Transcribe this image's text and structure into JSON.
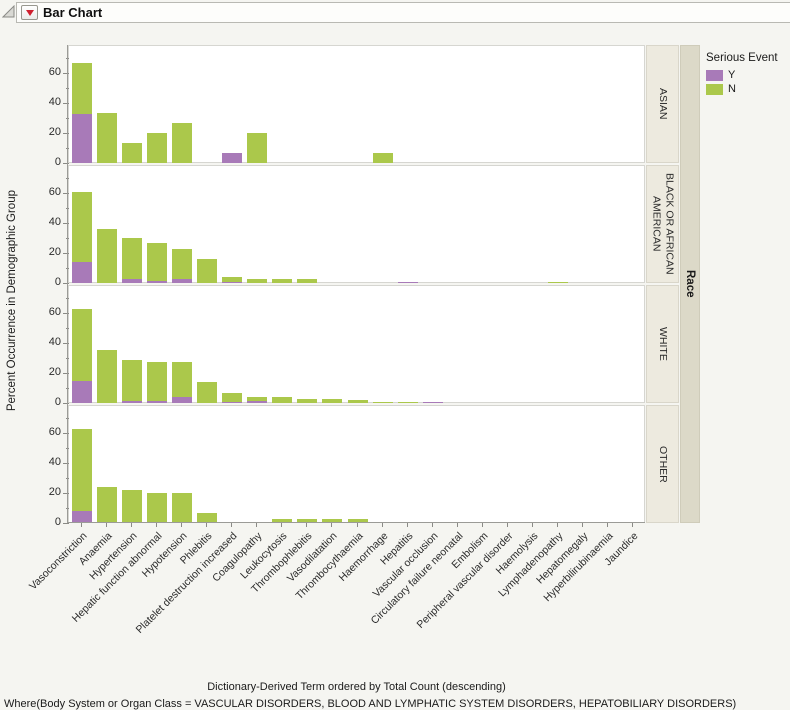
{
  "window": {
    "title": "Bar Chart"
  },
  "legend": {
    "title": "Serious Event",
    "items": [
      {
        "label": "Y",
        "color": "#a87ab8"
      },
      {
        "label": "N",
        "color": "#abc84b"
      }
    ]
  },
  "colors": {
    "serious_yes": "#a87ab8",
    "serious_no": "#abc84b",
    "axis": "#9b9b97",
    "strip_bg": "#edeadf",
    "race_strip_bg": "#dcd9c8",
    "page_bg": "#f5f5f1"
  },
  "chart_data": {
    "type": "bar",
    "stacked": true,
    "title": "Bar Chart",
    "xlabel": "Dictionary-Derived Term ordered by Total Count (descending)",
    "ylabel": "Percent Occurrence in Demographic Group",
    "panel_axis": "Race",
    "legend_position": "right",
    "yticks": [
      0,
      20,
      40,
      60
    ],
    "ylim": [
      0,
      78
    ],
    "grid": false,
    "categories": [
      "Vasoconstriction",
      "Anaemia",
      "Hypertension",
      "Hepatic function abnormal",
      "Hypotension",
      "Phlebitis",
      "Platelet destruction increased",
      "Coagulopathy",
      "Leukocytosis",
      "Thrombophlebitis",
      "Vasodilatation",
      "Thrombocythaemia",
      "Haemorrhage",
      "Hepatitis",
      "Vascular occlusion",
      "Circulatory failure neonatal",
      "Embolism",
      "Peripheral vascular disorder",
      "Haemolysis",
      "Lymphadenopathy",
      "Hepatomegaly",
      "Hyperbilirubinaemia",
      "Jaundice"
    ],
    "panels": [
      {
        "label": "ASIAN",
        "series": [
          {
            "name": "Y",
            "values": [
              33,
              0,
              0,
              0,
              0,
              0,
              7,
              0,
              0,
              0,
              0,
              0,
              0,
              0,
              0,
              0,
              0,
              0,
              0,
              0,
              0,
              0,
              0
            ]
          },
          {
            "name": "N",
            "values": [
              34,
              33.5,
              13.5,
              20,
              27,
              0,
              0,
              20,
              0,
              0,
              0,
              0,
              7,
              0,
              0,
              0,
              0,
              0,
              0,
              0,
              0,
              0,
              0
            ]
          }
        ]
      },
      {
        "label": "BLACK OR AFRICAN AMERICAN",
        "series": [
          {
            "name": "Y",
            "values": [
              14,
              0,
              2.5,
              1.2,
              3,
              0,
              0.7,
              0,
              0,
              0,
              0,
              0,
              0,
              1,
              0,
              0,
              0,
              0,
              0,
              0,
              0,
              0,
              0
            ]
          },
          {
            "name": "N",
            "values": [
              47,
              36,
              27.5,
              25.8,
              19.5,
              16,
              3.3,
              2.5,
              2.5,
              2.5,
              0,
              0,
              0,
              0,
              0,
              0,
              0,
              0,
              0,
              1,
              0,
              0,
              0
            ]
          }
        ]
      },
      {
        "label": "WHITE",
        "series": [
          {
            "name": "Y",
            "values": [
              15,
              0,
              1.5,
              1.5,
              4,
              0,
              1,
              1.5,
              0,
              0,
              0,
              0,
              0,
              0,
              0.7,
              0,
              0,
              0,
              0,
              0,
              0,
              0,
              0
            ]
          },
          {
            "name": "N",
            "values": [
              48,
              35.5,
              27.5,
              26,
              23.5,
              14,
              5.5,
              2.5,
              4,
              2.5,
              2.5,
              2,
              0.8,
              0.6,
              0,
              0,
              0,
              0,
              0,
              0,
              0,
              0,
              0
            ]
          }
        ]
      },
      {
        "label": "OTHER",
        "series": [
          {
            "name": "Y",
            "values": [
              8,
              0,
              0,
              0,
              0,
              0,
              0,
              0,
              0,
              0,
              0,
              0,
              0,
              0,
              0,
              0,
              0,
              0,
              0,
              0,
              0,
              0,
              0
            ]
          },
          {
            "name": "N",
            "values": [
              55,
              24,
              22,
              20,
              20,
              6.5,
              0,
              0,
              2.5,
              2.5,
              2.5,
              2.5,
              0,
              0,
              0,
              0,
              0,
              0,
              0,
              0,
              0,
              0,
              0
            ]
          }
        ]
      }
    ]
  },
  "footer": {
    "where": "Where(Body System or Organ Class = VASCULAR DISORDERS, BLOOD AND LYMPHATIC SYSTEM DISORDERS, HEPATOBILIARY DISORDERS)"
  }
}
